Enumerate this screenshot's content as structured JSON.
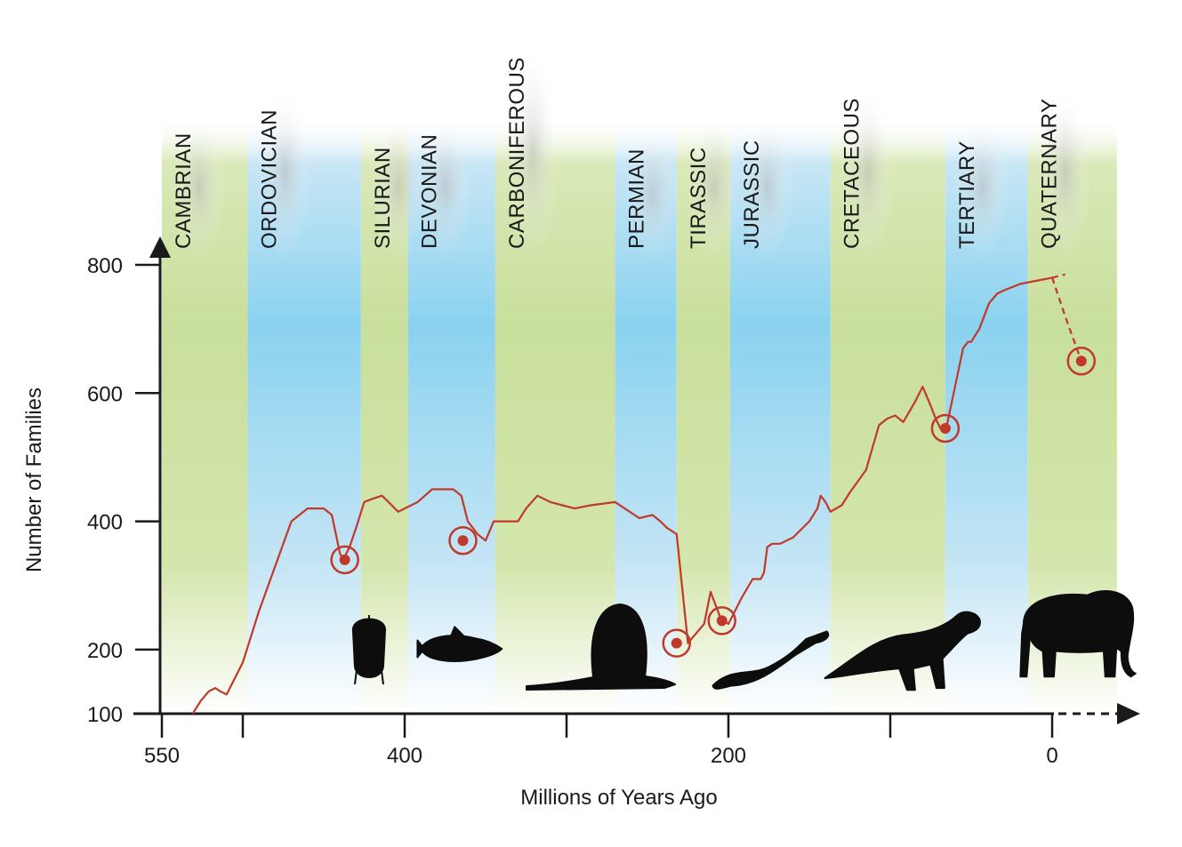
{
  "chart_data": {
    "type": "line",
    "xlabel": "Millions of Years Ago",
    "ylabel": "Number of Families",
    "xlim": [
      550,
      -40
    ],
    "ylim": [
      100,
      800
    ],
    "x_ticks": [
      550,
      400,
      200,
      0
    ],
    "x_minor_ticks": [
      500,
      300,
      100
    ],
    "y_ticks": [
      100,
      200,
      400,
      600,
      800
    ],
    "periods": [
      {
        "name": "CAMBRIAN",
        "start": 550,
        "end": 497,
        "color": "green"
      },
      {
        "name": "ORDOVICIAN",
        "start": 497,
        "end": 427,
        "color": "blue"
      },
      {
        "name": "SILURIAN",
        "start": 427,
        "end": 398,
        "color": "green"
      },
      {
        "name": "DEVONIAN",
        "start": 398,
        "end": 344,
        "color": "blue"
      },
      {
        "name": "CARBONIFEROUS",
        "start": 344,
        "end": 270,
        "color": "green"
      },
      {
        "name": "PERMIAN",
        "start": 270,
        "end": 232,
        "color": "blue"
      },
      {
        "name": "TIRASSIC",
        "start": 232,
        "end": 199,
        "color": "green"
      },
      {
        "name": "JURASSIC",
        "start": 199,
        "end": 137,
        "color": "blue"
      },
      {
        "name": "CRETACEOUS",
        "start": 137,
        "end": 66,
        "color": "green"
      },
      {
        "name": "TERTIARY",
        "start": 66,
        "end": 15,
        "color": "blue"
      },
      {
        "name": "QUATERNARY",
        "start": 15,
        "end": -40,
        "color": "green"
      }
    ],
    "series": [
      {
        "x": [
          531,
          526,
          521,
          517,
          514,
          510,
          500,
          490,
          470,
          460,
          455,
          450,
          445,
          440,
          438,
          434,
          430,
          425,
          420,
          414,
          410,
          404,
          400,
          392,
          383,
          376,
          370,
          365,
          361,
          355,
          350,
          345,
          340,
          330,
          325,
          318,
          310,
          295,
          285,
          270,
          255,
          247,
          242,
          238,
          232,
          225,
          215,
          211,
          208,
          205,
          200,
          197,
          192,
          185,
          180,
          178,
          176,
          173,
          168,
          160,
          150,
          145,
          143,
          140,
          137,
          130,
          125,
          115,
          107,
          102,
          97,
          92,
          85,
          80,
          75,
          72,
          69,
          65,
          60,
          55,
          52,
          50,
          45,
          39,
          34,
          30,
          20,
          10,
          0
        ],
        "y": [
          100,
          120,
          135,
          140,
          135,
          130,
          180,
          260,
          400,
          420,
          420,
          420,
          410,
          350,
          340,
          360,
          390,
          430,
          435,
          440,
          430,
          415,
          420,
          430,
          450,
          450,
          450,
          440,
          400,
          380,
          370,
          400,
          400,
          400,
          420,
          440,
          430,
          420,
          425,
          430,
          405,
          410,
          400,
          390,
          380,
          210,
          240,
          290,
          270,
          250,
          240,
          255,
          280,
          310,
          310,
          320,
          360,
          365,
          365,
          375,
          400,
          420,
          440,
          430,
          415,
          425,
          445,
          480,
          550,
          560,
          565,
          555,
          585,
          610,
          580,
          560,
          545,
          550,
          610,
          670,
          680,
          680,
          700,
          740,
          755,
          760,
          770,
          775,
          780
        ]
      }
    ],
    "projection": {
      "x": [
        0,
        -8,
        -18
      ],
      "y": [
        780,
        720,
        650
      ]
    },
    "projection_forward": {
      "x": [
        0,
        -8
      ],
      "y": [
        780,
        785
      ]
    },
    "extinction_events": [
      {
        "x": 437,
        "y": 340
      },
      {
        "x": 364,
        "y": 370
      },
      {
        "x": 232,
        "y": 210
      },
      {
        "x": 204,
        "y": 245
      },
      {
        "x": 66,
        "y": 545
      },
      {
        "x": -18,
        "y": 650
      }
    ],
    "silhouettes": [
      {
        "icon": "trilobite-icon",
        "x": 422
      },
      {
        "icon": "fish-icon",
        "x": 366
      },
      {
        "icon": "dimetrodon-icon",
        "x": 278
      },
      {
        "icon": "reptile-icon",
        "x": 175
      },
      {
        "icon": "dinosaur-icon",
        "x": 92
      },
      {
        "icon": "elephant-icon",
        "x": -12
      }
    ],
    "colors": {
      "line": "#c0392b",
      "band_green": "#cfe2a6",
      "band_blue": "#8fd3ee",
      "axis": "#1a1a1a",
      "silhouette": "#0d0d0d"
    }
  }
}
